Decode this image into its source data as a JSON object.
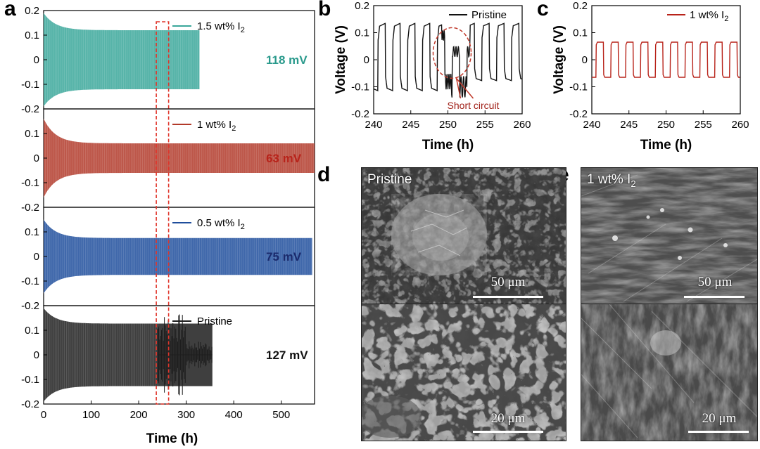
{
  "panel_letters": {
    "a": "a",
    "b": "b",
    "c": "c",
    "d": "d",
    "e": "e"
  },
  "chart_data": [
    {
      "panel": "a",
      "type": "line",
      "xlabel": "Time (h)",
      "xlim": [
        0,
        570
      ],
      "xticks": [
        0,
        100,
        200,
        300,
        400,
        500
      ],
      "ylabel": "",
      "ylim": [
        -0.2,
        0.2
      ],
      "yticks": [
        -0.2,
        -0.1,
        0,
        0.1,
        0.2
      ],
      "ytick_labels": [
        "-0.2",
        "-0.1",
        "0",
        "0.1",
        "0.2"
      ],
      "highlight_window": [
        240,
        260
      ],
      "subplots": [
        {
          "name": "1.5 wt% I2",
          "legend_main": "1.5 wt% I",
          "legend_sub": "2",
          "color": "#3aa79a",
          "end_h": 328,
          "init_amp": 0.19,
          "steady_amp": 0.12,
          "overpotential": "118 mV",
          "label_color": "#2a9a8c"
        },
        {
          "name": "1 wt% I2",
          "legend_main": "1 wt% I",
          "legend_sub": "2",
          "color": "#b23a2a",
          "end_h": 570,
          "init_amp": 0.16,
          "steady_amp": 0.06,
          "overpotential": "63 mV",
          "label_color": "#b8231a"
        },
        {
          "name": "0.5 wt% I2",
          "legend_main": "0.5 wt% I",
          "legend_sub": "2",
          "color": "#1f4e9c",
          "end_h": 565,
          "init_amp": 0.15,
          "steady_amp": 0.075,
          "overpotential": "75 mV",
          "label_color": "#1a2a6c"
        },
        {
          "name": "Pristine",
          "legend_main": "Pristine",
          "legend_sub": "",
          "color": "#1d1d1d",
          "end_h": 355,
          "init_amp": 0.19,
          "steady_amp": 0.127,
          "overpotential": "127 mV",
          "label_color": "#111111"
        }
      ]
    },
    {
      "panel": "b",
      "type": "line",
      "title": "",
      "xlabel": "Time (h)",
      "ylabel": "Voltage (V)",
      "xlim": [
        240,
        260
      ],
      "xticks": [
        240,
        245,
        250,
        255,
        260
      ],
      "ylim": [
        -0.2,
        0.2
      ],
      "yticks": [
        -0.2,
        -0.1,
        0,
        0.1,
        0.2
      ],
      "ytick_labels": [
        "-0.2",
        "-0.1",
        "0",
        "0.1",
        "0.2"
      ],
      "series": [
        {
          "name": "Pristine",
          "color": "#111111",
          "amplitude": 0.135,
          "period_h": 2
        }
      ],
      "short_circuit_at_h": 250,
      "annotation": "Short circuit"
    },
    {
      "panel": "c",
      "type": "line",
      "xlabel": "Time (h)",
      "ylabel": "Voltage (V)",
      "xlim": [
        240,
        260
      ],
      "xticks": [
        240,
        245,
        250,
        255,
        260
      ],
      "ylim": [
        -0.2,
        0.2
      ],
      "yticks": [
        -0.2,
        -0.1,
        0,
        0.1,
        0.2
      ],
      "ytick_labels": [
        "-0.2",
        "-0.1",
        "0",
        "0.1",
        "0.2"
      ],
      "series": [
        {
          "name": "1 wt% I2",
          "legend_main": "1 wt% I",
          "legend_sub": "2",
          "color": "#b8231a",
          "amplitude": 0.065,
          "period_h": 2
        }
      ]
    }
  ],
  "sem": {
    "d": {
      "label": "Pristine",
      "scale_top": "50 μm",
      "scale_bottom": "20 μm"
    },
    "e": {
      "label_main": "1 wt% I",
      "label_sub": "2",
      "scale_top": "50 μm",
      "scale_bottom": "20 μm"
    }
  }
}
